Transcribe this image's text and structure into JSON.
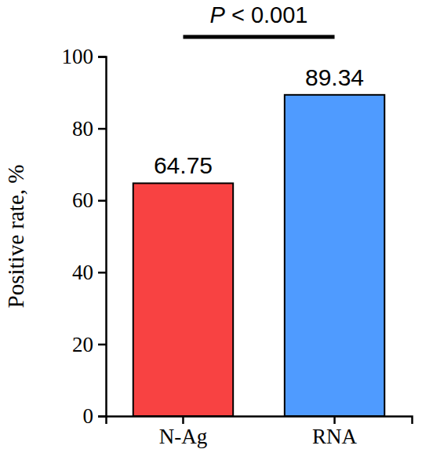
{
  "chart_data": {
    "type": "bar",
    "y_label": "Positive rate, %",
    "annotation": "P < 0.001",
    "categories": [
      "N-Ag",
      "RNA"
    ],
    "values": [
      64.75,
      89.34
    ],
    "colors": [
      "#f84242",
      "#4f9bff"
    ],
    "ylim": [
      0,
      100
    ],
    "yticks": [
      0,
      20,
      40,
      60,
      80,
      100
    ],
    "data_labels": true,
    "grid": false
  }
}
